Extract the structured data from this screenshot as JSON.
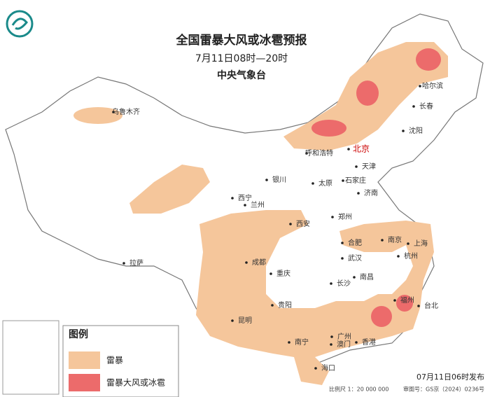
{
  "header": {
    "title": "全国雷暴大风或冰雹预报",
    "period": "7月11日08时—20时",
    "agency": "中央气象台"
  },
  "cities": [
    "乌鲁木齐",
    "哈尔滨",
    "长春",
    "沈阳",
    "北京",
    "呼和浩特",
    "天津",
    "银川",
    "太原",
    "石家庄",
    "济南",
    "西宁",
    "兰州",
    "郑州",
    "西安",
    "合肥",
    "南京",
    "上海",
    "杭州",
    "成都",
    "武汉",
    "拉萨",
    "重庆",
    "南昌",
    "长沙",
    "福州",
    "台北",
    "贵阳",
    "昆明",
    "南宁",
    "广州",
    "澳门",
    "香港",
    "海口"
  ],
  "legend": {
    "title": "图例",
    "items": [
      "雷暴",
      "雷暴大风或冰雹"
    ]
  },
  "footer": {
    "issued": "07月11日06时发布",
    "scale": "比例尺 1：20 000 000",
    "approval": "审图号：GS京（2024）0236号"
  }
}
